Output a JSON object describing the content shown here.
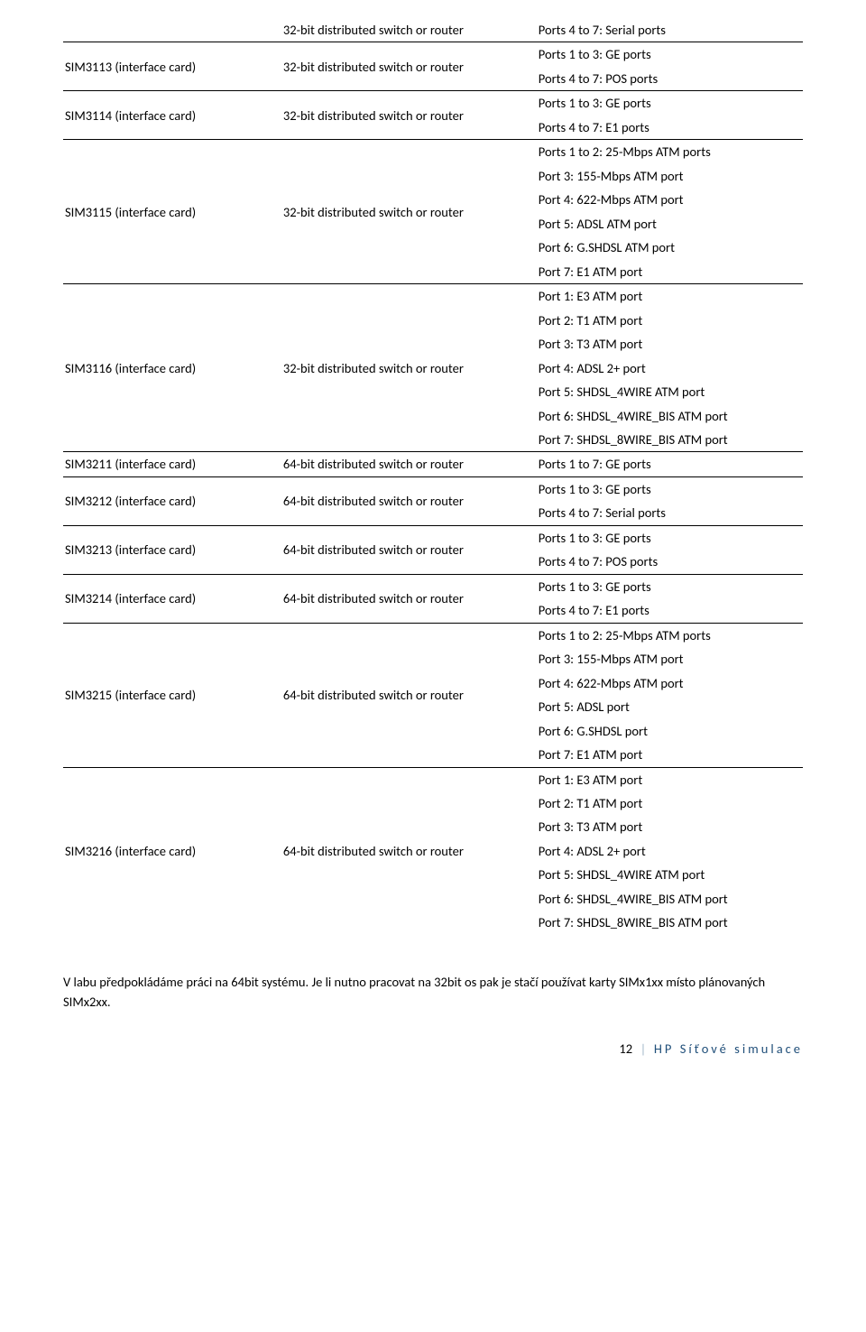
{
  "table": {
    "col_widths": [
      "29.5%",
      "34.5%",
      "36%"
    ],
    "rows": [
      {
        "col1": "",
        "col2": "32-bit distributed switch or router",
        "col3_lines": [
          "Ports 4 to 7: Serial ports"
        ],
        "border": true
      },
      {
        "col1": "SIM3113 (interface card)",
        "col2": "32-bit distributed switch or router",
        "col3_lines": [
          "Ports 1 to 3: GE ports",
          "Ports 4 to 7: POS ports"
        ],
        "border": true
      },
      {
        "col1": "SIM3114 (interface card)",
        "col2": "32-bit distributed switch or router",
        "col3_lines": [
          "Ports 1 to 3: GE ports",
          "Ports 4 to 7: E1 ports"
        ],
        "border": true
      },
      {
        "col1": "SIM3115 (interface card)",
        "col2": "32-bit distributed switch or router",
        "col3_lines": [
          "Ports 1 to 2: 25-Mbps ATM ports",
          "Port 3: 155-Mbps ATM port",
          "Port 4: 622-Mbps ATM port",
          "Port 5: ADSL ATM port",
          "Port 6: G.SHDSL ATM port",
          "Port 7: E1 ATM port"
        ],
        "border": true
      },
      {
        "col1": "SIM3116 (interface card)",
        "col2": "32-bit distributed switch or router",
        "col3_lines": [
          "Port 1: E3 ATM port",
          "Port 2: T1 ATM port",
          "Port 3: T3 ATM port",
          "Port 4: ADSL 2+ port",
          "Port 5: SHDSL_4WIRE ATM port",
          "Port 6: SHDSL_4WIRE_BIS ATM port",
          "Port 7: SHDSL_8WIRE_BIS ATM port"
        ],
        "border": true
      },
      {
        "col1": "SIM3211 (interface card)",
        "col2": "64-bit distributed switch or router",
        "col3_lines": [
          "Ports 1 to 7: GE ports"
        ],
        "border": true
      },
      {
        "col1": "SIM3212 (interface card)",
        "col2": "64-bit distributed switch or router",
        "col3_lines": [
          "Ports 1 to 3: GE ports",
          "Ports 4 to 7: Serial ports"
        ],
        "border": true
      },
      {
        "col1": "SIM3213 (interface card)",
        "col2": "64-bit distributed switch or router",
        "col3_lines": [
          "Ports 1 to 3: GE ports",
          "Ports 4 to 7: POS ports"
        ],
        "border": true
      },
      {
        "col1": "SIM3214 (interface card)",
        "col2": "64-bit distributed switch or router",
        "col3_lines": [
          "Ports 1 to 3: GE ports",
          "Ports 4 to 7: E1 ports"
        ],
        "border": true
      },
      {
        "col1": "SIM3215 (interface card)",
        "col2": "64-bit distributed switch or router",
        "col3_lines": [
          "Ports 1 to 2: 25-Mbps ATM ports",
          "Port 3: 155-Mbps ATM port",
          "Port 4: 622-Mbps ATM port",
          "Port 5: ADSL port",
          "Port 6: G.SHDSL port",
          "Port 7: E1 ATM port"
        ],
        "border": true
      },
      {
        "col1": "SIM3216 (interface card)",
        "col2": "64-bit distributed switch or router",
        "col3_lines": [
          "Port 1: E3 ATM port",
          "Port 2: T1 ATM port",
          "Port 3: T3 ATM port",
          "Port 4: ADSL 2+ port",
          "Port 5: SHDSL_4WIRE ATM port",
          "Port 6: SHDSL_4WIRE_BIS ATM port",
          "Port 7: SHDSL_8WIRE_BIS ATM port"
        ],
        "border": false
      }
    ]
  },
  "paragraph": "V labu předpokládáme práci na 64bit systému. Je li nutno pracovat na 32bit os pak je stačí používat karty SIMx1xx místo plánovaných SIMx2xx.",
  "footer": {
    "page_num": "12",
    "title": "HP Síťové simulace"
  }
}
